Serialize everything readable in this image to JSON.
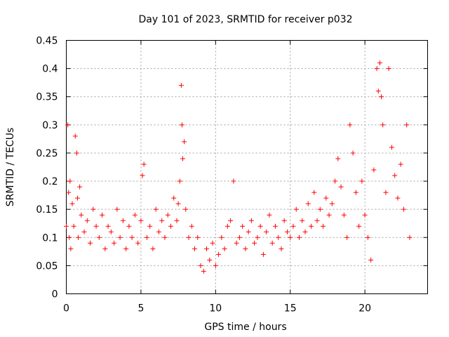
{
  "chart_data": {
    "type": "scatter",
    "title": "Day 101 of 2023, SRMTID for receiver p032",
    "xlabel": "GPS time / hours",
    "ylabel": "SRMTID / TECUs",
    "xlim": [
      0,
      24.2
    ],
    "ylim": [
      0,
      0.45
    ],
    "xticks": [
      0,
      5,
      10,
      15,
      20
    ],
    "xtick_labels": [
      "0",
      "5",
      "10",
      "15",
      "20"
    ],
    "yticks": [
      0,
      0.05,
      0.1,
      0.15,
      0.2,
      0.25,
      0.3,
      0.35,
      0.4,
      0.45
    ],
    "ytick_labels": [
      "0",
      "0.05",
      "0.1",
      "0.15",
      "0.2",
      "0.25",
      "0.3",
      "0.35",
      "0.4",
      "0.45"
    ],
    "grid": true,
    "marker": "+",
    "color": "#ff0000",
    "series": [
      {
        "name": "SRMTID",
        "x": [
          0.0,
          0.1,
          0.15,
          0.2,
          0.25,
          0.3,
          0.4,
          0.5,
          0.6,
          0.7,
          0.75,
          0.8,
          0.9,
          1.0,
          1.2,
          1.4,
          1.6,
          1.8,
          2.0,
          2.2,
          2.4,
          2.6,
          2.8,
          3.0,
          3.2,
          3.4,
          3.6,
          3.8,
          4.0,
          4.2,
          4.4,
          4.6,
          4.8,
          5.0,
          5.1,
          5.2,
          5.4,
          5.6,
          5.8,
          6.0,
          6.2,
          6.4,
          6.6,
          6.8,
          7.0,
          7.2,
          7.4,
          7.5,
          7.6,
          7.7,
          7.75,
          7.8,
          7.9,
          8.0,
          8.2,
          8.4,
          8.6,
          8.8,
          9.0,
          9.2,
          9.4,
          9.6,
          9.8,
          10.0,
          10.2,
          10.4,
          10.6,
          10.8,
          11.0,
          11.2,
          11.4,
          11.6,
          11.8,
          12.0,
          12.2,
          12.4,
          12.6,
          12.8,
          13.0,
          13.2,
          13.4,
          13.6,
          13.8,
          14.0,
          14.2,
          14.4,
          14.6,
          14.8,
          15.0,
          15.2,
          15.4,
          15.6,
          15.8,
          16.0,
          16.2,
          16.4,
          16.6,
          16.8,
          17.0,
          17.2,
          17.4,
          17.6,
          17.8,
          18.0,
          18.2,
          18.4,
          18.6,
          18.8,
          19.0,
          19.2,
          19.4,
          19.6,
          19.8,
          20.0,
          20.2,
          20.4,
          20.6,
          20.8,
          20.9,
          21.0,
          21.1,
          21.2,
          21.4,
          21.6,
          21.8,
          22.0,
          22.2,
          22.4,
          22.6,
          22.8,
          23.0
        ],
        "y": [
          0.12,
          0.3,
          0.18,
          0.1,
          0.2,
          0.08,
          0.16,
          0.12,
          0.28,
          0.25,
          0.17,
          0.1,
          0.19,
          0.14,
          0.11,
          0.13,
          0.09,
          0.15,
          0.12,
          0.1,
          0.14,
          0.08,
          0.12,
          0.11,
          0.09,
          0.15,
          0.1,
          0.13,
          0.08,
          0.12,
          0.1,
          0.14,
          0.09,
          0.13,
          0.21,
          0.23,
          0.1,
          0.12,
          0.08,
          0.15,
          0.11,
          0.13,
          0.1,
          0.14,
          0.12,
          0.17,
          0.13,
          0.16,
          0.2,
          0.37,
          0.3,
          0.24,
          0.27,
          0.15,
          0.1,
          0.12,
          0.08,
          0.1,
          0.05,
          0.04,
          0.08,
          0.06,
          0.09,
          0.05,
          0.07,
          0.1,
          0.08,
          0.12,
          0.13,
          0.2,
          0.09,
          0.1,
          0.12,
          0.08,
          0.11,
          0.13,
          0.09,
          0.1,
          0.12,
          0.07,
          0.11,
          0.14,
          0.09,
          0.12,
          0.1,
          0.08,
          0.13,
          0.11,
          0.1,
          0.12,
          0.15,
          0.1,
          0.13,
          0.11,
          0.16,
          0.12,
          0.18,
          0.13,
          0.15,
          0.12,
          0.17,
          0.14,
          0.16,
          0.2,
          0.24,
          0.19,
          0.14,
          0.1,
          0.3,
          0.25,
          0.18,
          0.12,
          0.2,
          0.14,
          0.1,
          0.06,
          0.22,
          0.4,
          0.36,
          0.41,
          0.35,
          0.3,
          0.18,
          0.4,
          0.26,
          0.21,
          0.17,
          0.23,
          0.15,
          0.3,
          0.1
        ]
      }
    ]
  }
}
